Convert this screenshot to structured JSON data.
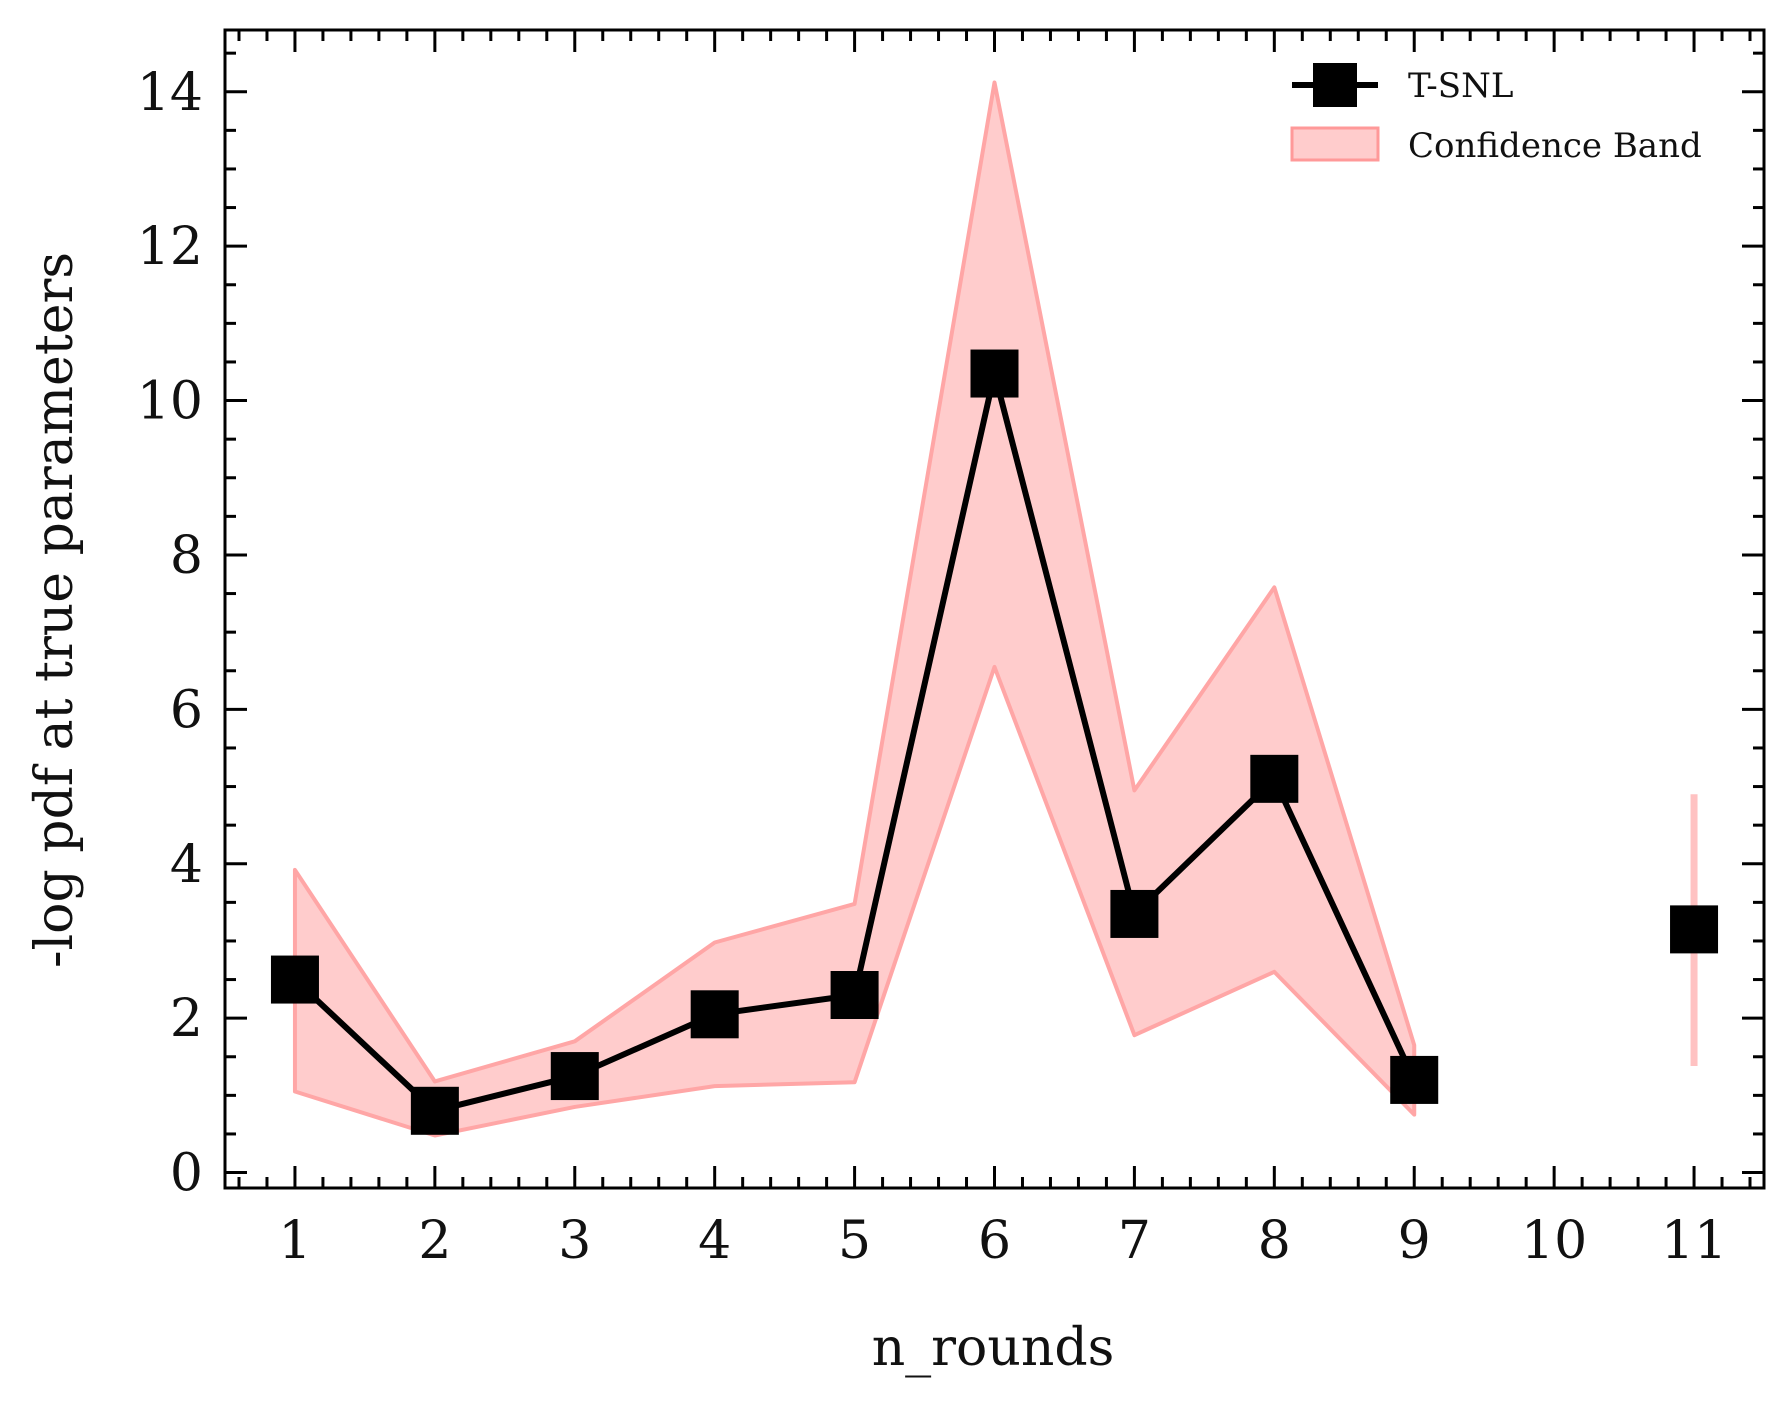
{
  "chart_data": {
    "type": "line",
    "xlabel": "n_rounds",
    "ylabel": "-log pdf at true parameters",
    "xlim": [
      0.5,
      11.5
    ],
    "ylim": [
      -0.2,
      14.8
    ],
    "x_ticks": [
      1,
      2,
      3,
      4,
      5,
      6,
      7,
      8,
      9,
      10,
      11
    ],
    "y_ticks": [
      0,
      2,
      4,
      6,
      8,
      10,
      12,
      14
    ],
    "grid": false,
    "legend_position": "top-right",
    "series": [
      {
        "name": "T-SNL",
        "marker": "square",
        "color": "#000000",
        "x": [
          1,
          2,
          3,
          4,
          5,
          6,
          7,
          8,
          9,
          11
        ],
        "y": [
          2.5,
          0.8,
          1.25,
          2.05,
          2.3,
          10.35,
          3.35,
          5.1,
          1.2,
          3.15
        ],
        "connected_until_x": 9
      }
    ],
    "band": {
      "name": "Confidence Band",
      "color": "#ff9999",
      "x": [
        1,
        2,
        3,
        4,
        5,
        6,
        7,
        8,
        9,
        11
      ],
      "lower": [
        1.05,
        0.48,
        0.85,
        1.12,
        1.17,
        6.55,
        1.78,
        2.6,
        0.75,
        1.38
      ],
      "upper": [
        3.92,
        1.18,
        1.7,
        2.98,
        3.48,
        14.12,
        4.95,
        7.58,
        1.65,
        4.9
      ]
    }
  }
}
